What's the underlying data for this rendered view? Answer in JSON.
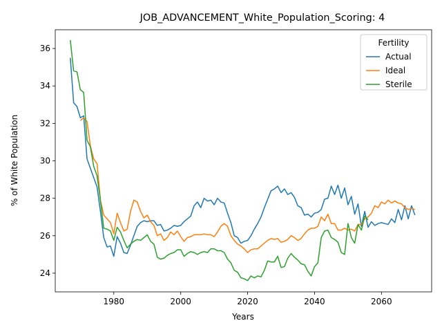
{
  "chart_data": {
    "type": "line",
    "title": "JOB_ADVANCEMENT_White_Population_Scoring: 4",
    "xlabel": "Years",
    "ylabel": "% of White Population",
    "xlim": [
      1062.5,
      1675
    ],
    "ylim": [
      23,
      37
    ],
    "xticks": [
      {
        "v": 1980,
        "label": "1980"
      },
      {
        "v": 2000,
        "label": "2000"
      },
      {
        "v": 2020,
        "label": "2020"
      },
      {
        "v": 2040,
        "label": "2040"
      },
      {
        "v": 2060,
        "label": "2060"
      }
    ],
    "yticks": [
      24,
      26,
      28,
      30,
      32,
      34,
      36
    ],
    "grid": false,
    "legend": {
      "title": "Fertility",
      "position": "top-right"
    },
    "series": [
      {
        "name": "Actual",
        "color": "#1f77b4",
        "x": [
          1967,
          1968,
          1969,
          1970,
          1971,
          1972,
          1973,
          1974,
          1975,
          1976,
          1977,
          1978,
          1979,
          1980,
          1981,
          1982,
          1983,
          1984,
          1985,
          1986,
          1987,
          1988,
          1989,
          1990,
          1991,
          1992,
          1993,
          1994,
          1995,
          1996,
          1997,
          1998,
          1999,
          2000,
          2001,
          2002,
          2003,
          2004,
          2005,
          2006,
          2007,
          2008,
          2009,
          2010,
          2011,
          2012,
          2013,
          2014,
          2015,
          2016,
          2017,
          2018,
          2019,
          2020,
          2021,
          2022,
          2023,
          2024,
          2025,
          2026,
          2027,
          2028,
          2029,
          2030,
          2031,
          2032,
          2033,
          2034,
          2035,
          2036,
          2037,
          2038,
          2039,
          2040,
          2041,
          2042,
          2043,
          2044,
          2045,
          2046,
          2047,
          2048,
          2049,
          2050,
          2051,
          2052,
          2053,
          2054,
          2055,
          2056,
          2057,
          2058,
          2059,
          2060,
          2061,
          2062,
          2063,
          2064,
          2065,
          2066,
          2067,
          2068,
          2069,
          2070
        ],
        "y": [
          35.5,
          33.1,
          32.9,
          32.3,
          32.4,
          30.1,
          29.6,
          29.1,
          28.6,
          27.3,
          25.9,
          25.4,
          25.45,
          24.9,
          25.95,
          25.6,
          25.1,
          25.05,
          25.5,
          26.0,
          26.5,
          26.7,
          26.8,
          26.75,
          26.8,
          26.8,
          26.55,
          26.6,
          26.25,
          26.3,
          26.4,
          26.55,
          26.5,
          26.55,
          26.75,
          26.9,
          27.05,
          27.6,
          27.8,
          27.5,
          28.0,
          27.85,
          27.9,
          27.65,
          28.0,
          27.8,
          27.75,
          27.2,
          26.7,
          26.0,
          25.9,
          25.6,
          25.7,
          25.75,
          26.0,
          26.35,
          26.65,
          27.0,
          27.5,
          27.95,
          28.4,
          28.5,
          28.65,
          28.3,
          28.5,
          28.2,
          28.3,
          28.05,
          27.6,
          27.5,
          27.1,
          27.15,
          27.0,
          27.2,
          27.25,
          27.4,
          27.95,
          28.0,
          28.65,
          28.2,
          28.7,
          28.0,
          28.55,
          27.65,
          28.1,
          27.15,
          27.7,
          26.5,
          27.3,
          26.45,
          26.75,
          26.55,
          26.65,
          26.7,
          26.65,
          26.6,
          26.9,
          26.7,
          27.4,
          26.85,
          27.6,
          26.9,
          27.6,
          27.1
        ]
      },
      {
        "name": "Ideal",
        "color": "#ff7f0e",
        "x": [
          1970,
          1971,
          1972,
          1973,
          1974,
          1975,
          1976,
          1977,
          1978,
          1979,
          1980,
          1981,
          1982,
          1983,
          1984,
          1985,
          1986,
          1987,
          1988,
          1989,
          1990,
          1991,
          1992,
          1993,
          1994,
          1995,
          1996,
          1997,
          1998,
          1999,
          2000,
          2001,
          2002,
          2003,
          2004,
          2005,
          2006,
          2007,
          2008,
          2009,
          2010,
          2011,
          2012,
          2013,
          2014,
          2015,
          2016,
          2017,
          2018,
          2019,
          2020,
          2021,
          2022,
          2023,
          2024,
          2025,
          2026,
          2027,
          2028,
          2029,
          2030,
          2031,
          2032,
          2033,
          2034,
          2035,
          2036,
          2037,
          2038,
          2039,
          2040,
          2041,
          2042,
          2043,
          2044,
          2045,
          2046,
          2047,
          2048,
          2049,
          2050,
          2051,
          2052,
          2053,
          2054,
          2055,
          2056,
          2057,
          2058,
          2059,
          2060,
          2061,
          2062,
          2063,
          2064,
          2065,
          2066,
          2067,
          2068,
          2069,
          2070
        ],
        "y": [
          32.15,
          32.3,
          32.1,
          30.8,
          30.1,
          29.85,
          27.9,
          27.1,
          26.9,
          26.7,
          26.1,
          27.2,
          26.7,
          26.25,
          26.35,
          27.3,
          27.9,
          27.8,
          27.3,
          26.95,
          27.1,
          26.75,
          26.55,
          26.0,
          26.1,
          25.75,
          25.9,
          26.2,
          26.05,
          26.25,
          25.95,
          25.7,
          25.9,
          25.95,
          26.05,
          26.05,
          26.05,
          26.1,
          26.05,
          26.05,
          25.95,
          26.2,
          26.5,
          26.65,
          26.5,
          26.0,
          25.75,
          25.55,
          25.45,
          25.3,
          25.1,
          25.25,
          25.3,
          25.3,
          25.45,
          25.6,
          25.75,
          25.85,
          25.8,
          25.85,
          25.65,
          25.7,
          25.8,
          26.0,
          25.9,
          25.75,
          25.85,
          26.1,
          26.3,
          26.4,
          26.4,
          26.5,
          27.0,
          26.8,
          27.15,
          26.65,
          26.65,
          26.3,
          26.3,
          26.4,
          26.3,
          26.35,
          26.25,
          26.6,
          26.6,
          26.9,
          27.0,
          27.2,
          27.6,
          27.5,
          27.8,
          27.7,
          27.9,
          27.75,
          27.85,
          27.75,
          27.7,
          27.5,
          27.4,
          27.45,
          27.4
        ]
      },
      {
        "name": "Sterile",
        "color": "#2ca02c",
        "x": [
          1967,
          1968,
          1969,
          1970,
          1971,
          1972,
          1973,
          1974,
          1975,
          1976,
          1977,
          1978,
          1979,
          1980,
          1981,
          1982,
          1983,
          1984,
          1985,
          1986,
          1987,
          1988,
          1989,
          1990,
          1991,
          1992,
          1993,
          1994,
          1995,
          1996,
          1997,
          1998,
          1999,
          2000,
          2001,
          2002,
          2003,
          2004,
          2005,
          2006,
          2007,
          2008,
          2009,
          2010,
          2011,
          2012,
          2013,
          2014,
          2015,
          2016,
          2017,
          2018,
          2019,
          2020,
          2021,
          2022,
          2023,
          2024,
          2025,
          2026,
          2027,
          2028,
          2029,
          2030,
          2031,
          2032,
          2033,
          2034,
          2035,
          2036,
          2037,
          2038,
          2039,
          2040,
          2041,
          2042,
          2043,
          2044,
          2045,
          2046,
          2047,
          2048,
          2049,
          2050,
          2051,
          2052,
          2053,
          2054,
          2055,
          2056
        ],
        "y": [
          36.45,
          34.8,
          34.75,
          33.8,
          33.65,
          31.1,
          30.75,
          29.7,
          29.2,
          27.9,
          26.4,
          26.35,
          26.25,
          25.75,
          26.45,
          26.2,
          25.75,
          25.35,
          25.55,
          25.7,
          25.8,
          25.75,
          25.9,
          26.05,
          25.7,
          25.55,
          24.85,
          24.75,
          24.8,
          24.95,
          25.05,
          25.1,
          25.25,
          25.25,
          24.9,
          25.05,
          25.15,
          25.1,
          25.0,
          25.1,
          25.15,
          25.1,
          25.3,
          25.3,
          25.2,
          25.2,
          25.1,
          24.75,
          24.55,
          24.15,
          24.05,
          23.75,
          23.7,
          23.6,
          23.85,
          23.75,
          23.85,
          23.8,
          24.15,
          24.65,
          24.6,
          24.6,
          24.9,
          24.3,
          24.35,
          24.8,
          25.05,
          24.85,
          24.7,
          24.5,
          24.45,
          24.1,
          23.85,
          24.35,
          24.55,
          25.9,
          26.25,
          26.3,
          25.9,
          25.8,
          25.65,
          25.1,
          25.0,
          26.65,
          25.9,
          25.6,
          26.6,
          26.3,
          27.05,
          26.85
        ]
      }
    ]
  }
}
